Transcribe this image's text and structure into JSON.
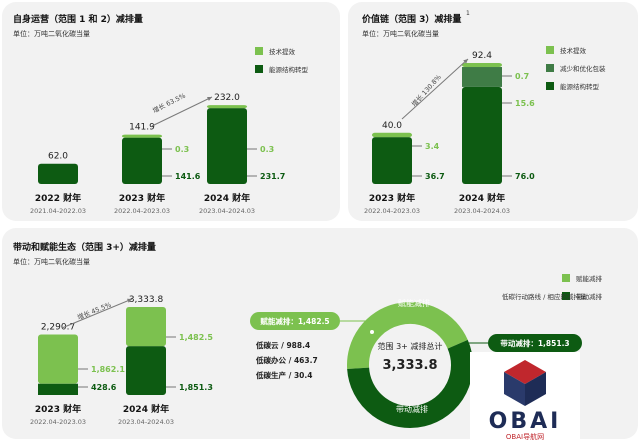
{
  "colors": {
    "light_green": "#7cc14f",
    "mid_green": "#3f7c46",
    "dark_green": "#0d5b12",
    "panel_bg": "#f2f2f2",
    "arrow": "#7a7a7a"
  },
  "panel_1": {
    "title": "自身运营（范围 1 和 2）减排量",
    "unit": "单位：万吨二氧化碳当量",
    "legend": [
      "技术提效",
      "能源结构转型"
    ],
    "growth": "增长 63.5%"
  },
  "panel_2": {
    "title": "价值链（范围 3）减排量",
    "superscript": "1",
    "unit": "单位：万吨二氧化碳当量",
    "legend": [
      "技术提效",
      "减少和优化包装",
      "能源结构转型"
    ],
    "growth": "增长 130.8%"
  },
  "panel_3": {
    "title": "带动和赋能生态（范围 3+）减排量",
    "unit": "单位：万吨二氧化碳当量",
    "legend": [
      "赋能减排",
      "带动减排"
    ],
    "note": "低碳行动路线 / 相应的减排量",
    "growth": "增长 45.5%",
    "donut": {
      "center_title": "范围 3+ 减排总计",
      "center_value": "3,333.8",
      "enable_label": "赋能减排",
      "drive_label": "带动减排",
      "enable_callout": "赋能减排：1,482.5",
      "drive_callout": "带动减排：1,851.3",
      "enable_value": 1482.5,
      "drive_value": 1851.3,
      "items": [
        "低碳云 / 988.4",
        "低碳办公 / 463.7",
        "低碳生产 / 30.4"
      ]
    }
  },
  "chart_data": [
    {
      "type": "bar",
      "title": "自身运营（范围 1 和 2）减排量",
      "categories": [
        "2022 财年",
        "2023 财年",
        "2024 财年"
      ],
      "category_sub": [
        "2021.04-2022.03",
        "2022.04-2023.03",
        "2023.04-2024.03"
      ],
      "totals": [
        "62.0",
        "141.9",
        "232.0"
      ],
      "series": [
        {
          "name": "能源结构转型",
          "values": [
            62.0,
            141.6,
            231.7
          ],
          "labels": [
            "",
            "141.6",
            "231.7"
          ]
        },
        {
          "name": "技术提效",
          "values": [
            0,
            0.3,
            0.3
          ],
          "labels": [
            "",
            "0.3",
            "0.3"
          ]
        }
      ],
      "ylim": [
        0,
        232
      ]
    },
    {
      "type": "bar",
      "title": "价值链（范围 3）减排量",
      "categories": [
        "2023 财年",
        "2024 财年"
      ],
      "category_sub": [
        "2022.04-2023.03",
        "2023.04-2024.03"
      ],
      "totals": [
        "40.0",
        "92.4"
      ],
      "series": [
        {
          "name": "能源结构转型",
          "values": [
            36.7,
            76.0
          ],
          "labels": [
            "36.7",
            "76.0"
          ]
        },
        {
          "name": "减少和优化包装",
          "values": [
            0,
            15.6
          ],
          "labels": [
            "",
            "15.6"
          ]
        },
        {
          "name": "技术提效",
          "values": [
            3.4,
            0.7
          ],
          "labels": [
            "3.4",
            "0.7"
          ]
        }
      ],
      "ylim": [
        0,
        92.4
      ]
    },
    {
      "type": "bar",
      "title": "带动和赋能生态（范围 3+）减排量",
      "categories": [
        "2023 财年",
        "2024 财年"
      ],
      "category_sub": [
        "2022.04-2023.03",
        "2023.04-2024.03"
      ],
      "totals": [
        "2,290.7",
        "3,333.8"
      ],
      "series": [
        {
          "name": "带动减排",
          "values": [
            428.6,
            1851.3
          ],
          "labels": [
            "428.6",
            "1,851.3"
          ]
        },
        {
          "name": "赋能减排",
          "values": [
            1862.1,
            1482.5
          ],
          "labels": [
            "1,862.1",
            "1,482.5"
          ]
        }
      ],
      "ylim": [
        0,
        3333.8
      ]
    }
  ],
  "watermark": {
    "text": "OBAI",
    "sub": "OBAI导航网"
  }
}
